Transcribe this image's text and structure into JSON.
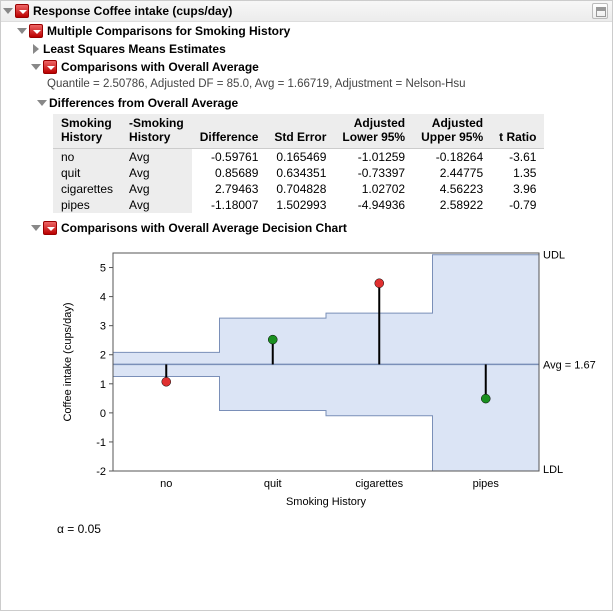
{
  "top": {
    "title": "Response Coffee intake (cups/day)"
  },
  "sec1": {
    "title": "Multiple Comparisons for Smoking History"
  },
  "lsme": {
    "title": "Least Squares Means Estimates"
  },
  "coa": {
    "title": "Comparisons with Overall Average",
    "sub": "Quantile = 2.50786, Adjusted DF = 85.0, Avg = 1.66719, Adjustment = Nelson-Hsu"
  },
  "diff": {
    "title": "Differences from Overall Average",
    "cols": {
      "c0a": "Smoking",
      "c0b": "History",
      "c1a": "-Smoking",
      "c1b": "History",
      "c2": "Difference",
      "c3": "Std Error",
      "c4a": "Adjusted",
      "c4b": "Lower 95%",
      "c5a": "Adjusted",
      "c5b": "Upper 95%",
      "c6": "t Ratio"
    },
    "rows": [
      {
        "g": "no",
        "v": "Avg",
        "d": "-0.59761",
        "s": "0.165469",
        "l": "-1.01259",
        "u": "-0.18264",
        "t": "-3.61"
      },
      {
        "g": "quit",
        "v": "Avg",
        "d": "0.85689",
        "s": "0.634351",
        "l": "-0.73397",
        "u": "2.44775",
        "t": "1.35"
      },
      {
        "g": "cigarettes",
        "v": "Avg",
        "d": "2.79463",
        "s": "0.704828",
        "l": "1.02702",
        "u": "4.56223",
        "t": "3.96"
      },
      {
        "g": "pipes",
        "v": "Avg",
        "d": "-1.18007",
        "s": "1.502993",
        "l": "-4.94936",
        "u": "2.58922",
        "t": "-0.79"
      }
    ]
  },
  "chart": {
    "title": "Comparisons with Overall Average Decision Chart",
    "ylabel": "Coffee intake (cups/day)",
    "xlabel": "Smoking History",
    "avg": 1.66719,
    "avg_label": "Avg = 1.67",
    "udl_label": "UDL",
    "ldl_label": "LDL",
    "ylim": [
      -2,
      5.5
    ],
    "yticks": [
      -2,
      -1,
      0,
      1,
      2,
      3,
      4,
      5
    ],
    "categories": [
      "no",
      "quit",
      "cigarettes",
      "pipes"
    ],
    "band_color": "#dbe4f5",
    "band_stroke": "#7a8fb8",
    "avg_color": "#7a8fb8",
    "bg": "#ffffff",
    "frame": "#555555",
    "bands": [
      {
        "lo": 1.25,
        "hi": 2.08
      },
      {
        "lo": 0.08,
        "hi": 3.26
      },
      {
        "lo": -0.1,
        "hi": 3.43
      },
      {
        "lo": -2.1,
        "hi": 5.44
      }
    ],
    "points": [
      {
        "mean": 1.07,
        "color": "#e03030"
      },
      {
        "mean": 2.52,
        "color": "#1a9020"
      },
      {
        "mean": 4.46,
        "color": "#e03030"
      },
      {
        "mean": 0.49,
        "color": "#1a9020"
      }
    ]
  },
  "alpha": "α = 0.05"
}
